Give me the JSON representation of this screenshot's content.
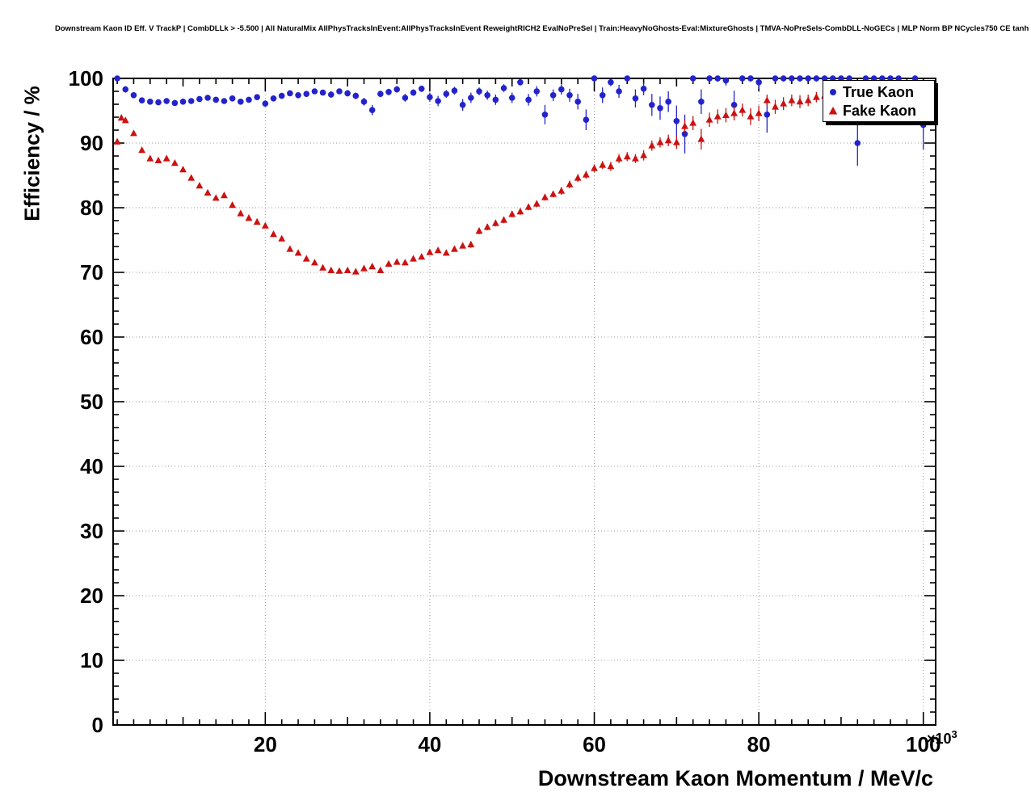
{
  "chart_data": {
    "type": "scatter",
    "title": "Downstream Kaon ID Eff. V TrackP | CombDLLk > -5.500 | All NaturalMix AllPhysTracksInEvent:AllPhysTracksInEvent ReweightRICH2 EvalNoPreSel | Train:HeavyNoGhosts-Eval:MixtureGhosts | TMVA-NoPreSels-CombDLL-NoGECs | MLP Norm BP NCycles750 CE tanh SF1.2 CVTest15:1e-16 !UseReg",
    "xlabel": "Downstream Kaon Momentum / MeV/c",
    "ylabel": "Efficiency / %",
    "x_multiplier": "×10",
    "x_multiplier_exp": "3",
    "xlim": [
      1.5,
      101.5
    ],
    "ylim": [
      0,
      100
    ],
    "x_ticks": [
      20,
      40,
      60,
      80,
      100
    ],
    "y_ticks": [
      0,
      10,
      20,
      30,
      40,
      50,
      60,
      70,
      80,
      90,
      100
    ],
    "minor_step_x": 2,
    "minor_step_y": 2,
    "grid": true,
    "legend_position": "top-right",
    "series": [
      {
        "name": "True Kaon",
        "marker": "circle",
        "color": "#2323cc",
        "points": [
          [
            2,
            100,
            0.3
          ],
          [
            3,
            98.3,
            0.5
          ],
          [
            4,
            97.4,
            0.4
          ],
          [
            5,
            96.6,
            0.4
          ],
          [
            6,
            96.4,
            0.3
          ],
          [
            7,
            96.3,
            0.3
          ],
          [
            8,
            96.5,
            0.3
          ],
          [
            9,
            96.2,
            0.3
          ],
          [
            10,
            96.4,
            0.3
          ],
          [
            11,
            96.5,
            0.3
          ],
          [
            12,
            96.8,
            0.3
          ],
          [
            13,
            97.0,
            0.3
          ],
          [
            14,
            96.7,
            0.3
          ],
          [
            15,
            96.5,
            0.3
          ],
          [
            16,
            96.9,
            0.4
          ],
          [
            17,
            96.4,
            0.4
          ],
          [
            18,
            96.7,
            0.4
          ],
          [
            19,
            97.1,
            0.4
          ],
          [
            20,
            96.1,
            0.5
          ],
          [
            21,
            96.9,
            0.4
          ],
          [
            22,
            97.3,
            0.4
          ],
          [
            23,
            97.7,
            0.4
          ],
          [
            24,
            97.4,
            0.4
          ],
          [
            25,
            97.6,
            0.4
          ],
          [
            26,
            98.0,
            0.4
          ],
          [
            27,
            97.8,
            0.4
          ],
          [
            28,
            97.5,
            0.5
          ],
          [
            29,
            98.0,
            0.4
          ],
          [
            30,
            97.7,
            0.5
          ],
          [
            31,
            97.3,
            0.5
          ],
          [
            32,
            96.4,
            0.6
          ],
          [
            33,
            95.1,
            0.8
          ],
          [
            34,
            97.6,
            0.5
          ],
          [
            35,
            97.9,
            0.5
          ],
          [
            36,
            98.3,
            0.5
          ],
          [
            37,
            97.0,
            0.6
          ],
          [
            38,
            97.8,
            0.5
          ],
          [
            39,
            98.4,
            0.5
          ],
          [
            40,
            97.1,
            0.7
          ],
          [
            41,
            96.5,
            0.8
          ],
          [
            42,
            97.6,
            0.6
          ],
          [
            43,
            98.1,
            0.6
          ],
          [
            44,
            95.9,
            0.9
          ],
          [
            45,
            97.0,
            0.8
          ],
          [
            46,
            98.0,
            0.6
          ],
          [
            47,
            97.4,
            0.7
          ],
          [
            48,
            96.7,
            0.8
          ],
          [
            49,
            98.5,
            0.6
          ],
          [
            50,
            97.0,
            0.8
          ],
          [
            51,
            99.4,
            0.5
          ],
          [
            52,
            96.7,
            0.9
          ],
          [
            53,
            98.0,
            0.8
          ],
          [
            54,
            94.4,
            1.5
          ],
          [
            55,
            97.4,
            0.9
          ],
          [
            56,
            98.3,
            0.8
          ],
          [
            57,
            97.4,
            1.0
          ],
          [
            58,
            96.4,
            1.2
          ],
          [
            59,
            93.6,
            1.6
          ],
          [
            60,
            100,
            0.4
          ],
          [
            61,
            97.4,
            1.2
          ],
          [
            62,
            99.4,
            0.6
          ],
          [
            63,
            98.0,
            1.0
          ],
          [
            64,
            100,
            0.4
          ],
          [
            65,
            96.9,
            1.4
          ],
          [
            66,
            98.4,
            1.0
          ],
          [
            67,
            95.9,
            1.7
          ],
          [
            68,
            95.4,
            1.8
          ],
          [
            69,
            96.4,
            1.6
          ],
          [
            70,
            93.4,
            2.4
          ],
          [
            71,
            91.4,
            3.0
          ],
          [
            72,
            100,
            0.5
          ],
          [
            73,
            96.4,
            1.9
          ],
          [
            74,
            100,
            0.5
          ],
          [
            75,
            100,
            0.5
          ],
          [
            76,
            99.7,
            0.8
          ],
          [
            77,
            95.9,
            2.2
          ],
          [
            78,
            100,
            0.5
          ],
          [
            79,
            100,
            0.5
          ],
          [
            80,
            99.4,
            1.0
          ],
          [
            81,
            94.4,
            2.8
          ],
          [
            82,
            100,
            0.5
          ],
          [
            83,
            100,
            0.5
          ],
          [
            84,
            100,
            0.5
          ],
          [
            85,
            100,
            0.5
          ],
          [
            86,
            100,
            0.5
          ],
          [
            87,
            100,
            0.5
          ],
          [
            88,
            100,
            0.5
          ],
          [
            89,
            100,
            0.5
          ],
          [
            90,
            100,
            0.5
          ],
          [
            91,
            100,
            0.6
          ],
          [
            92,
            90.0,
            3.5
          ],
          [
            93,
            100,
            0.6
          ],
          [
            94,
            100,
            0.6
          ],
          [
            95,
            100,
            0.6
          ],
          [
            96,
            100,
            0.6
          ],
          [
            97,
            100,
            0.6
          ],
          [
            98,
            96.0,
            2.5
          ],
          [
            99,
            100,
            0.6
          ],
          [
            100,
            92.8,
            3.8
          ]
        ]
      },
      {
        "name": "Fake Kaon",
        "marker": "triangle",
        "color": "#cc1111",
        "points": [
          [
            2,
            90.2,
            0.4
          ],
          [
            2.5,
            93.9,
            0.3
          ],
          [
            3,
            93.5,
            0.3
          ],
          [
            4,
            91.5,
            0.3
          ],
          [
            5,
            88.9,
            0.3
          ],
          [
            6,
            87.6,
            0.3
          ],
          [
            7,
            87.3,
            0.3
          ],
          [
            8,
            87.6,
            0.3
          ],
          [
            9,
            86.9,
            0.3
          ],
          [
            10,
            85.9,
            0.3
          ],
          [
            11,
            84.6,
            0.3
          ],
          [
            12,
            83.4,
            0.3
          ],
          [
            13,
            82.3,
            0.3
          ],
          [
            14,
            81.5,
            0.3
          ],
          [
            15,
            81.9,
            0.3
          ],
          [
            16,
            80.4,
            0.3
          ],
          [
            17,
            79.1,
            0.3
          ],
          [
            18,
            78.4,
            0.3
          ],
          [
            19,
            77.8,
            0.3
          ],
          [
            20,
            77.2,
            0.3
          ],
          [
            21,
            75.9,
            0.3
          ],
          [
            22,
            75.2,
            0.3
          ],
          [
            23,
            73.6,
            0.3
          ],
          [
            24,
            73.0,
            0.3
          ],
          [
            25,
            72.1,
            0.3
          ],
          [
            26,
            71.5,
            0.3
          ],
          [
            27,
            70.7,
            0.3
          ],
          [
            28,
            70.3,
            0.3
          ],
          [
            29,
            70.2,
            0.3
          ],
          [
            30,
            70.3,
            0.3
          ],
          [
            31,
            70.1,
            0.3
          ],
          [
            32,
            70.6,
            0.3
          ],
          [
            33,
            70.9,
            0.3
          ],
          [
            34,
            70.3,
            0.4
          ],
          [
            35,
            71.3,
            0.4
          ],
          [
            36,
            71.6,
            0.4
          ],
          [
            37,
            71.5,
            0.4
          ],
          [
            38,
            72.1,
            0.4
          ],
          [
            39,
            72.4,
            0.4
          ],
          [
            40,
            73.1,
            0.4
          ],
          [
            41,
            73.4,
            0.4
          ],
          [
            42,
            73.0,
            0.4
          ],
          [
            43,
            73.6,
            0.4
          ],
          [
            44,
            74.1,
            0.4
          ],
          [
            45,
            74.3,
            0.5
          ],
          [
            46,
            76.4,
            0.5
          ],
          [
            47,
            77.0,
            0.5
          ],
          [
            48,
            77.6,
            0.5
          ],
          [
            49,
            78.1,
            0.5
          ],
          [
            50,
            79.0,
            0.5
          ],
          [
            51,
            79.4,
            0.5
          ],
          [
            52,
            80.1,
            0.5
          ],
          [
            53,
            80.6,
            0.5
          ],
          [
            54,
            81.6,
            0.5
          ],
          [
            55,
            82.1,
            0.5
          ],
          [
            56,
            82.6,
            0.6
          ],
          [
            57,
            83.6,
            0.6
          ],
          [
            58,
            84.6,
            0.6
          ],
          [
            59,
            85.1,
            0.6
          ],
          [
            60,
            86.1,
            0.6
          ],
          [
            61,
            86.6,
            0.6
          ],
          [
            62,
            86.4,
            0.7
          ],
          [
            63,
            87.6,
            0.7
          ],
          [
            64,
            87.9,
            0.7
          ],
          [
            65,
            87.6,
            0.7
          ],
          [
            66,
            88.1,
            0.8
          ],
          [
            67,
            89.6,
            0.8
          ],
          [
            68,
            90.1,
            0.8
          ],
          [
            69,
            90.4,
            0.9
          ],
          [
            70,
            90.1,
            1.0
          ],
          [
            71,
            92.6,
            1.0
          ],
          [
            72,
            93.1,
            1.1
          ],
          [
            73,
            90.6,
            1.6
          ],
          [
            74,
            93.6,
            1.1
          ],
          [
            75,
            94.1,
            1.1
          ],
          [
            76,
            94.3,
            1.1
          ],
          [
            77,
            94.6,
            1.1
          ],
          [
            78,
            95.1,
            1.0
          ],
          [
            79,
            94.1,
            1.3
          ],
          [
            80,
            94.6,
            1.2
          ],
          [
            81,
            96.6,
            0.9
          ],
          [
            82,
            95.6,
            1.1
          ],
          [
            83,
            96.1,
            1.0
          ],
          [
            84,
            96.6,
            0.9
          ],
          [
            85,
            96.4,
            1.0
          ],
          [
            86,
            96.6,
            0.9
          ],
          [
            87,
            97.1,
            0.8
          ],
          [
            88,
            97.3,
            0.8
          ],
          [
            89,
            97.6,
            0.8
          ]
        ]
      }
    ]
  }
}
